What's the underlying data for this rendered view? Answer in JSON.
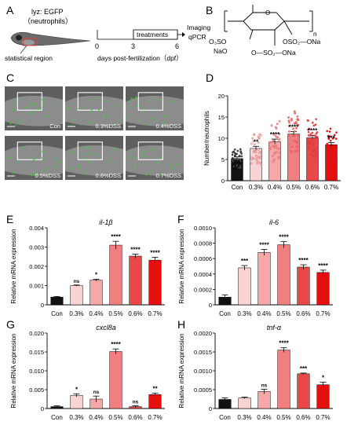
{
  "panel_letters": [
    "A",
    "B",
    "C",
    "D",
    "E",
    "F",
    "G",
    "H"
  ],
  "panel_a": {
    "title_line1": "lyz: EGFP",
    "title_line2": "（neutrophils）",
    "region_label": "statistical region",
    "treatments_label": "treatments",
    "ticks": [
      "0",
      "3",
      "6"
    ],
    "endpoint_line1": "Imaging",
    "endpoint_line2": "qPCR",
    "xaxis_label": "days post-fertilization（dpf）"
  },
  "panel_b": {
    "subscript_n": "n",
    "groups": [
      "O₃SO",
      "NaO",
      "OSO₂—ONa",
      "O—SO₂—ONa"
    ],
    "sugar_o": "O"
  },
  "panel_c": {
    "tiles": [
      "Con",
      "0.3%DSS",
      "0.4%DSS",
      "0.5%DSS",
      "0.6%DSS",
      "0.7%DSS"
    ]
  },
  "colors": {
    "con": "#111111",
    "s03": "#f9d3d3",
    "s04": "#f6a8a8",
    "s05": "#f08080",
    "s06": "#ea4848",
    "s07": "#e60f0f"
  },
  "chart_data": [
    {
      "id": "D",
      "type": "bar",
      "ylabel": "Number/neutrophils",
      "categories": [
        "Con",
        "0.3%",
        "0.4%",
        "0.5%",
        "0.6%",
        "0.7%"
      ],
      "values": [
        5.2,
        7.6,
        9.2,
        11.0,
        10.1,
        8.5
      ],
      "errors": [
        0.4,
        0.5,
        0.6,
        0.6,
        0.6,
        0.5
      ],
      "significance": [
        "",
        "**",
        "****",
        "****",
        "****",
        "***"
      ],
      "ylim": [
        0,
        20
      ],
      "yticks": [
        "0",
        "5",
        "10",
        "15",
        "20"
      ],
      "scatter": true
    },
    {
      "id": "E",
      "type": "bar",
      "title": "il-1β",
      "ylabel": "Relative mRNA expression",
      "categories": [
        "Con",
        "0.3%",
        "0.4%",
        "0.5%",
        "0.6%",
        "0.7%"
      ],
      "values": [
        0.0004,
        0.001,
        0.00128,
        0.0031,
        0.00253,
        0.00232
      ],
      "errors": [
        3e-05,
        3e-05,
        5e-05,
        0.0002,
        0.0001,
        0.00015
      ],
      "significance": [
        "",
        "ns",
        "*",
        "****",
        "****",
        "****"
      ],
      "ylim": [
        0,
        0.004
      ],
      "yticks": [
        "0",
        "0.001",
        "0.002",
        "0.003",
        "0.004"
      ]
    },
    {
      "id": "F",
      "type": "bar",
      "title": "il-6",
      "ylabel": "Relative mRNA expression",
      "categories": [
        "Con",
        "0.3%",
        "0.4%",
        "0.5%",
        "0.6%",
        "0.7%"
      ],
      "values": [
        0.0001,
        0.00048,
        0.00068,
        0.00078,
        0.00049,
        0.00042
      ],
      "errors": [
        3e-05,
        3e-05,
        4e-05,
        4e-05,
        3e-05,
        3e-05
      ],
      "significance": [
        "",
        "***",
        "****",
        "****",
        "****",
        "****"
      ],
      "ylim": [
        0,
        0.001
      ],
      "yticks": [
        "0",
        "0.0002",
        "0.0004",
        "0.0006",
        "0.0008",
        "0.0010"
      ]
    },
    {
      "id": "G",
      "type": "bar",
      "title": "cxcl8a",
      "ylabel": "Relative mRNA expression",
      "categories": [
        "Con",
        "0.3%",
        "0.4%",
        "0.5%",
        "0.6%",
        "0.7%"
      ],
      "values": [
        0.0005,
        0.0035,
        0.0025,
        0.0151,
        0.0005,
        0.0037
      ],
      "errors": [
        0.0002,
        0.0004,
        0.0008,
        0.0007,
        0.0002,
        0.0004
      ],
      "significance": [
        "",
        "*",
        "ns",
        "****",
        "ns",
        "**"
      ],
      "ylim": [
        0,
        0.02
      ],
      "yticks": [
        "0",
        "0.005",
        "0.010",
        "0.015",
        "0.020"
      ]
    },
    {
      "id": "H",
      "type": "bar",
      "title": "tnf-α",
      "ylabel": "Relative mRNA expression",
      "categories": [
        "Con",
        "0.3%",
        "0.4%",
        "0.5%",
        "0.6%",
        "0.7%"
      ],
      "values": [
        0.00024,
        0.00028,
        0.00045,
        0.00155,
        0.00092,
        0.00063
      ],
      "errors": [
        4e-05,
        2e-05,
        6e-05,
        6e-05,
        2e-05,
        7e-05
      ],
      "significance": [
        "",
        "",
        "ns",
        "****",
        "***",
        "*"
      ],
      "ylim": [
        0,
        0.002
      ],
      "yticks": [
        "0",
        "0.0005",
        "0.0010",
        "0.0015",
        "0.0020"
      ]
    }
  ]
}
